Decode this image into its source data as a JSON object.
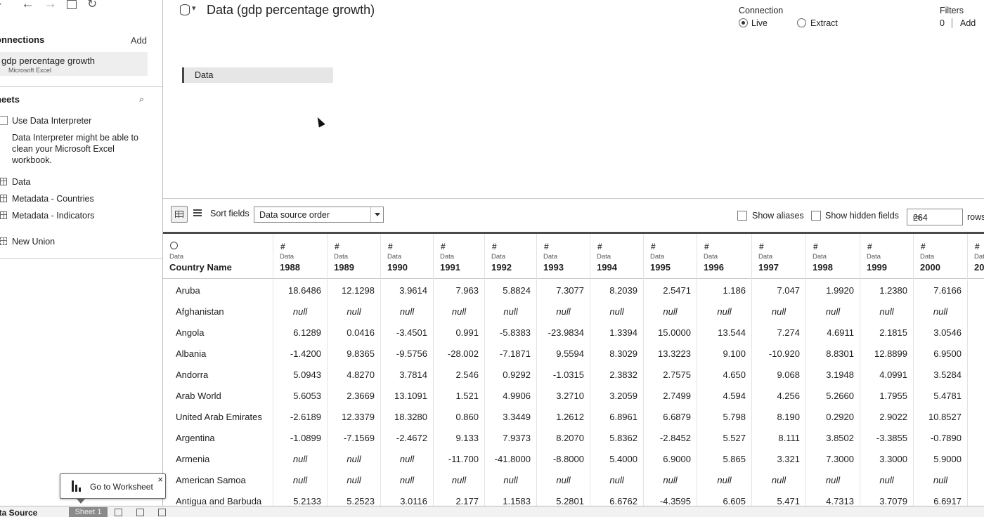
{
  "toolbar": {
    "back_icon": "arrow-left-icon",
    "forward_icon": "arrow-right-icon",
    "save_icon": "save-icon",
    "refresh_icon": "refresh-icon"
  },
  "connections": {
    "header": "onnections",
    "add": "Add",
    "item": {
      "name": "gdp percentage growth",
      "type": "Microsoft Excel"
    }
  },
  "sheets": {
    "header": "heets",
    "use_interpreter": "Use Data Interpreter",
    "interpreter_help": [
      "Data Interpreter might be able to",
      "clean your Microsoft Excel",
      "workbook."
    ],
    "items": [
      "Data",
      "Metadata - Countries",
      "Metadata - Indicators"
    ],
    "new_union": "New Union"
  },
  "canvas": {
    "title": "Data (gdp percentage growth)",
    "connection_label": "Connection",
    "live": "Live",
    "extract": "Extract",
    "filters_label": "Filters",
    "filters_count": "0",
    "filters_add": "Add",
    "table_pill": "Data"
  },
  "grid_toolbar": {
    "sort_label": "Sort fields",
    "sort_value": "Data source order",
    "show_aliases": "Show aliases",
    "show_hidden": "Show hidden fields",
    "rows_value": "264",
    "rows_label": "rows"
  },
  "grid": {
    "columns": [
      {
        "type_icon": "globe-icon",
        "source": "Data",
        "name": "Country Name"
      },
      {
        "type_icon": "#",
        "source": "Data",
        "name": "1988"
      },
      {
        "type_icon": "#",
        "source": "Data",
        "name": "1989"
      },
      {
        "type_icon": "#",
        "source": "Data",
        "name": "1990"
      },
      {
        "type_icon": "#",
        "source": "Data",
        "name": "1991"
      },
      {
        "type_icon": "#",
        "source": "Data",
        "name": "1992"
      },
      {
        "type_icon": "#",
        "source": "Data",
        "name": "1993"
      },
      {
        "type_icon": "#",
        "source": "Data",
        "name": "1994"
      },
      {
        "type_icon": "#",
        "source": "Data",
        "name": "1995"
      },
      {
        "type_icon": "#",
        "source": "Data",
        "name": "1996"
      },
      {
        "type_icon": "#",
        "source": "Data",
        "name": "1997"
      },
      {
        "type_icon": "#",
        "source": "Data",
        "name": "1998"
      },
      {
        "type_icon": "#",
        "source": "Data",
        "name": "1999"
      },
      {
        "type_icon": "#",
        "source": "Data",
        "name": "2000"
      },
      {
        "type_icon": "#",
        "source": "Data",
        "name": "20"
      }
    ],
    "rows": [
      [
        "Aruba",
        "18.6486",
        "12.1298",
        "3.9614",
        "7.963",
        "5.8824",
        "7.3077",
        "8.2039",
        "2.5471",
        "1.186",
        "7.047",
        "1.9920",
        "1.2380",
        "7.6166",
        ""
      ],
      [
        "Afghanistan",
        "null",
        "null",
        "null",
        "null",
        "null",
        "null",
        "null",
        "null",
        "null",
        "null",
        "null",
        "null",
        "null",
        ""
      ],
      [
        "Angola",
        "6.1289",
        "0.0416",
        "-3.4501",
        "0.991",
        "-5.8383",
        "-23.9834",
        "1.3394",
        "15.0000",
        "13.544",
        "7.274",
        "4.6911",
        "2.1815",
        "3.0546",
        ""
      ],
      [
        "Albania",
        "-1.4200",
        "9.8365",
        "-9.5756",
        "-28.002",
        "-7.1871",
        "9.5594",
        "8.3029",
        "13.3223",
        "9.100",
        "-10.920",
        "8.8301",
        "12.8899",
        "6.9500",
        ""
      ],
      [
        "Andorra",
        "5.0943",
        "4.8270",
        "3.7814",
        "2.546",
        "0.9292",
        "-1.0315",
        "2.3832",
        "2.7575",
        "4.650",
        "9.068",
        "3.1948",
        "4.0991",
        "3.5284",
        ""
      ],
      [
        "Arab World",
        "5.6053",
        "2.3669",
        "13.1091",
        "1.521",
        "4.9906",
        "3.2710",
        "3.2059",
        "2.7499",
        "4.594",
        "4.256",
        "5.2660",
        "1.7955",
        "5.4781",
        ""
      ],
      [
        "United Arab Emirates",
        "-2.6189",
        "12.3379",
        "18.3280",
        "0.860",
        "3.3449",
        "1.2612",
        "6.8961",
        "6.6879",
        "5.798",
        "8.190",
        "0.2920",
        "2.9022",
        "10.8527",
        ""
      ],
      [
        "Argentina",
        "-1.0899",
        "-7.1569",
        "-2.4672",
        "9.133",
        "7.9373",
        "8.2070",
        "5.8362",
        "-2.8452",
        "5.527",
        "8.111",
        "3.8502",
        "-3.3855",
        "-0.7890",
        ""
      ],
      [
        "Armenia",
        "null",
        "null",
        "null",
        "-11.700",
        "-41.8000",
        "-8.8000",
        "5.4000",
        "6.9000",
        "5.865",
        "3.321",
        "7.3000",
        "3.3000",
        "5.9000",
        ""
      ],
      [
        "American Samoa",
        "null",
        "null",
        "null",
        "null",
        "null",
        "null",
        "null",
        "null",
        "null",
        "null",
        "null",
        "null",
        "null",
        ""
      ],
      [
        "Antigua and Barbuda",
        "5.2133",
        "5.2523",
        "3.0116",
        "2.177",
        "1.1583",
        "5.2801",
        "6.6762",
        "-4.3595",
        "6.605",
        "5.471",
        "4.7313",
        "3.7079",
        "6.6917",
        ""
      ]
    ]
  },
  "bottom": {
    "data_source_tab": "ata Source",
    "sheet_tab": "Sheet 1"
  },
  "popup": {
    "label": "Go to Worksheet",
    "close": "×"
  }
}
